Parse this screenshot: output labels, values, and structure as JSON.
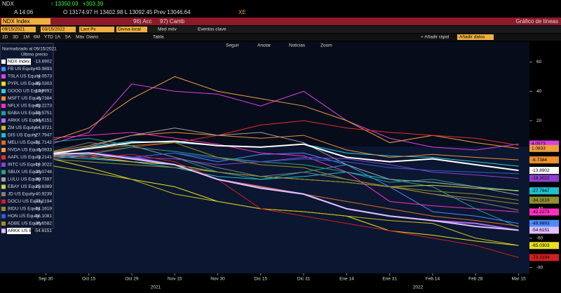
{
  "header": {
    "ticker": "NDX",
    "last": "↑ 13350.03",
    "change": "+303.39",
    "time": "A 14:06",
    "ohlc": "O 13174.97 H 13402.98 L 13092.45 Prev 13046.64",
    "exch": "XE"
  },
  "bar": {
    "security": "NDX Index",
    "actions": "96) Acc",
    "change": "97) Camb",
    "title": "Gráfico de líneas"
  },
  "inputs": {
    "start": "09/15/2021",
    "end": "03/15/2022",
    "field": "Last Px",
    "currency": "Divisa local",
    "ma": "Med móv",
    "events": "Eventos clave"
  },
  "periods": [
    "1D",
    "3D",
    "1M",
    "6M",
    "YTD",
    "1A",
    "5A",
    "Máx",
    "Diario"
  ],
  "table": "Tabla",
  "quick_add": "+ Añadir rápid",
  "add_data": "Añadir datos",
  "tools": [
    "Seguir",
    "Anotar",
    "Noticias",
    "Zoom"
  ],
  "legend_header": {
    "line1": "Normalizado al 09/15/2021",
    "line2": "Último precio"
  },
  "chart_data": {
    "type": "line",
    "categories": [
      null,
      "Sep 30",
      "Oct 15",
      "Oct 29",
      "Nov 15",
      "Nov 30",
      "Dic 15",
      "Dic 31",
      "Ene 14",
      "Ene 31",
      "Feb 14",
      "Feb 28",
      "Mar 15"
    ],
    "years": [
      "2021",
      "2022"
    ],
    "ylim": [
      -84,
      74
    ],
    "yticks": [
      60,
      40,
      20,
      -40,
      -60,
      -80
    ],
    "series": [
      {
        "name": "NDX Index",
        "color": "#ffffff",
        "values": [
          0,
          -3,
          1,
          5,
          6,
          3,
          2,
          4,
          -5,
          -8,
          -6,
          -10,
          -13.8902
        ]
      },
      {
        "name": "FB US Equity",
        "color": "#4a8cff",
        "values": [
          0,
          -6,
          -4,
          -5,
          -2,
          -8,
          -3,
          -2,
          -10,
          -25,
          -42,
          -45,
          -49.9893
        ]
      },
      {
        "name": "TSLA US Equity",
        "color": "#e040e0",
        "values": [
          0,
          3,
          12,
          45,
          40,
          38,
          30,
          40,
          20,
          8,
          2,
          0,
          4.0573
        ]
      },
      {
        "name": "PYPL US Equity",
        "color": "#e8e020",
        "values": [
          0,
          -5,
          -12,
          -20,
          -25,
          -35,
          -40,
          -42,
          -45,
          -55,
          -58,
          -62,
          -65.0303
        ]
      },
      {
        "name": "GOOG US Equity",
        "color": "#30d0e0",
        "values": [
          0,
          -4,
          2,
          6,
          5,
          3,
          2,
          4,
          -2,
          -4,
          -5,
          -8,
          -10.9992
        ]
      },
      {
        "name": "MSFT US Equity",
        "color": "#f09030",
        "values": [
          0,
          -2,
          3,
          10,
          12,
          10,
          8,
          10,
          0,
          -5,
          -3,
          -5,
          -6.7384
        ]
      },
      {
        "name": "NFLX US Equity",
        "color": "#ff30c0",
        "values": [
          0,
          8,
          10,
          12,
          8,
          4,
          -2,
          -4,
          -15,
          -35,
          -38,
          -40,
          -42.2273
        ]
      },
      {
        "name": "BABA US Equity",
        "color": "#20a0a0",
        "values": [
          0,
          5,
          8,
          3,
          -5,
          -15,
          -20,
          -15,
          -10,
          -20,
          -25,
          -40,
          -52.5751
        ]
      },
      {
        "name": "ARKK US Equity",
        "color": "#b070f0",
        "values": [
          0,
          -4,
          -2,
          -5,
          -10,
          -20,
          -25,
          -30,
          -40,
          -45,
          -48,
          -50,
          -54.6151
        ]
      },
      {
        "name": "ZM US Equity",
        "color": "#c8c020",
        "values": [
          0,
          -10,
          -15,
          -20,
          -30,
          -35,
          -40,
          -42,
          -45,
          -48,
          -50,
          -60,
          -64.9721
        ]
      },
      {
        "name": "DIS US Equity",
        "color": "#20c0d0",
        "values": [
          0,
          -4,
          -6,
          -8,
          -12,
          -18,
          -20,
          -18,
          -15,
          -20,
          -22,
          -25,
          -27.7947
        ]
      },
      {
        "name": "MELI US Equity",
        "color": "#e07020",
        "values": [
          0,
          -5,
          -3,
          -8,
          -10,
          -20,
          -25,
          -30,
          -35,
          -40,
          -45,
          -48,
          -51.7142
        ]
      },
      {
        "name": "NVDA US Equity",
        "color": "#f0a040",
        "values": [
          0,
          5,
          15,
          35,
          50,
          40,
          35,
          30,
          20,
          5,
          10,
          5,
          1.0833
        ]
      },
      {
        "name": "AAPL US Equity",
        "color": "#e03030",
        "values": [
          0,
          -4,
          -2,
          2,
          5,
          10,
          17,
          20,
          15,
          12,
          10,
          8,
          3.2141
        ]
      },
      {
        "name": "INTC US Equity",
        "color": "#9040d0",
        "values": [
          0,
          -3,
          -2,
          -5,
          -6,
          -10,
          -8,
          -5,
          -6,
          -10,
          -15,
          -17,
          -19.3022
        ]
      },
      {
        "name": "SBUX US Equity",
        "color": "#30a080",
        "values": [
          0,
          -2,
          -3,
          2,
          -1,
          -5,
          -8,
          -10,
          -15,
          -22,
          -20,
          -25,
          -28.0748
        ]
      },
      {
        "name": "LULU US Equity",
        "color": "#a0a0a0",
        "values": [
          0,
          -5,
          2,
          10,
          15,
          10,
          12,
          5,
          -10,
          -20,
          -22,
          -25,
          -30.7387
        ]
      },
      {
        "name": "EBAY US Equity",
        "color": "#d0d040",
        "values": [
          0,
          -3,
          -5,
          -8,
          -10,
          -15,
          -18,
          -20,
          -22,
          -25,
          -24,
          -26,
          -27.6389
        ]
      },
      {
        "name": "JD US Equity",
        "color": "#808080",
        "values": [
          0,
          -2,
          5,
          3,
          -5,
          -12,
          -18,
          -15,
          -20,
          -25,
          -30,
          -35,
          -40.9239
        ]
      },
      {
        "name": "DOCU US Equity",
        "color": "#d02020",
        "values": [
          0,
          -2,
          -5,
          -3,
          -8,
          -20,
          -40,
          -45,
          -50,
          -55,
          -60,
          -65,
          -73.2194
        ]
      },
      {
        "name": "BIDU US Equity",
        "color": "#909030",
        "values": [
          0,
          -6,
          -8,
          -10,
          -12,
          -15,
          -18,
          -20,
          -22,
          -25,
          -28,
          -30,
          -34.1619
        ]
      },
      {
        "name": "HON US Equity",
        "color": "#3060d0",
        "values": [
          0,
          -3,
          -4,
          -5,
          -2,
          -6,
          -8,
          -6,
          -8,
          -12,
          -14,
          -15,
          -16.1081
        ]
      },
      {
        "name": "ADBE US Equity",
        "color": "#a09020",
        "values": [
          0,
          -2,
          1,
          3,
          5,
          -5,
          -10,
          -12,
          -20,
          -25,
          -30,
          -33,
          -36.6582
        ]
      },
      {
        "name": "ARKK US Equity",
        "color": "#e0c0ff",
        "values": [
          0,
          -3,
          -2,
          -6,
          -10,
          -20,
          -26,
          -30,
          -40,
          -45,
          -48,
          -52,
          -54.6151
        ]
      }
    ]
  }
}
